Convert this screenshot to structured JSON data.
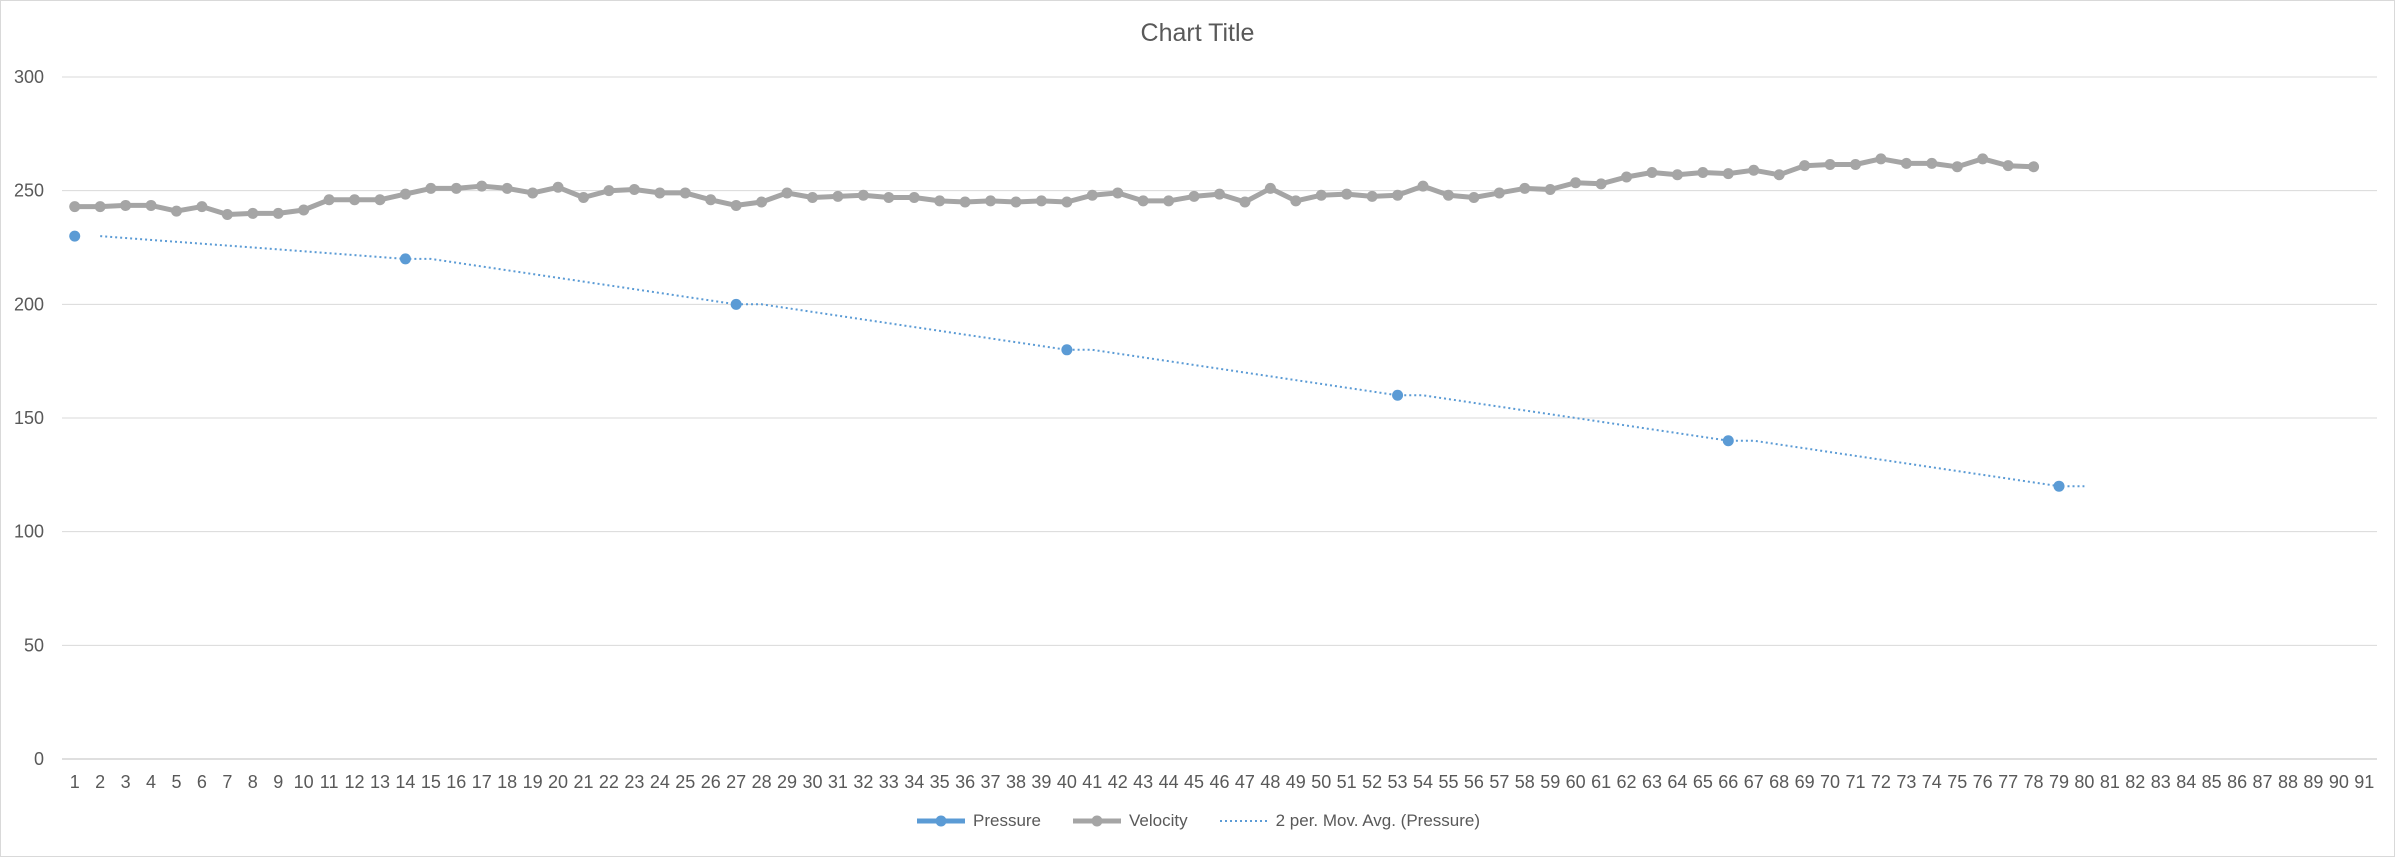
{
  "chart_data": {
    "type": "line",
    "title": "Chart Title",
    "xlabel": "",
    "ylabel": "",
    "ylim": [
      0,
      300
    ],
    "yticks": [
      0,
      50,
      100,
      150,
      200,
      250,
      300
    ],
    "categories": [
      1,
      2,
      3,
      4,
      5,
      6,
      7,
      8,
      9,
      10,
      11,
      12,
      13,
      14,
      15,
      16,
      17,
      18,
      19,
      20,
      21,
      22,
      23,
      24,
      25,
      26,
      27,
      28,
      29,
      30,
      31,
      32,
      33,
      34,
      35,
      36,
      37,
      38,
      39,
      40,
      41,
      42,
      43,
      44,
      45,
      46,
      47,
      48,
      49,
      50,
      51,
      52,
      53,
      54,
      55,
      56,
      57,
      58,
      59,
      60,
      61,
      62,
      63,
      64,
      65,
      66,
      67,
      68,
      69,
      70,
      71,
      72,
      73,
      74,
      75,
      76,
      77,
      78,
      79,
      80,
      81,
      82,
      83,
      84,
      85,
      86,
      87,
      88,
      89,
      90,
      91
    ],
    "grid": true,
    "legend_position": "bottom",
    "series": [
      {
        "name": "Pressure",
        "color": "#5b9bd5",
        "style": "markers",
        "x": [
          1,
          14,
          27,
          40,
          53,
          66,
          79
        ],
        "values": [
          230,
          220,
          200,
          180,
          160,
          140,
          120
        ]
      },
      {
        "name": "Velocity",
        "color": "#a5a5a5",
        "style": "line-markers",
        "x": [
          1,
          2,
          3,
          4,
          5,
          6,
          7,
          8,
          9,
          10,
          11,
          12,
          13,
          14,
          15,
          16,
          17,
          18,
          19,
          20,
          21,
          22,
          23,
          24,
          25,
          26,
          27,
          28,
          29,
          30,
          31,
          32,
          33,
          34,
          35,
          36,
          37,
          38,
          39,
          40,
          41,
          42,
          43,
          44,
          45,
          46,
          47,
          48,
          49,
          50,
          51,
          52,
          53,
          54,
          55,
          56,
          57,
          58,
          59,
          60,
          61,
          62,
          63,
          64,
          65,
          66,
          67,
          68,
          69,
          70,
          71,
          72,
          73,
          74,
          75,
          76,
          77,
          78
        ],
        "values": [
          243,
          243,
          243.5,
          243.5,
          241,
          243,
          239.5,
          240,
          240,
          241.5,
          246,
          246,
          246,
          248.5,
          251,
          251,
          252,
          251,
          249,
          251.5,
          247,
          250,
          250.5,
          249,
          249,
          246,
          243.5,
          245,
          249,
          247,
          247.5,
          248,
          247,
          247,
          245.5,
          245,
          245.5,
          245,
          245.5,
          245,
          248,
          249,
          245.5,
          245.5,
          247.5,
          248.5,
          245,
          251,
          245.5,
          248,
          248.5,
          247.5,
          248,
          252,
          248,
          247,
          249,
          251,
          250.5,
          253.5,
          253,
          256,
          258,
          257,
          258,
          257.5,
          259,
          257,
          261,
          261.5,
          261.5,
          264,
          262,
          262,
          260.5,
          264,
          261,
          260.5
        ]
      },
      {
        "name": "2 per. Mov. Avg. (Pressure)",
        "color": "#5b9bd5",
        "style": "dotted",
        "x": [
          2,
          14,
          15,
          27,
          28,
          40,
          41,
          53,
          54,
          66,
          67,
          79,
          80
        ],
        "values": [
          230,
          220,
          220,
          200,
          200,
          180,
          180,
          160,
          160,
          140,
          140,
          120,
          120
        ]
      }
    ]
  }
}
